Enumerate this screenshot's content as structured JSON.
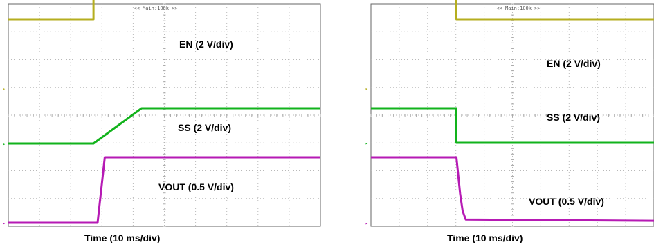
{
  "chart_data": [
    {
      "type": "line",
      "title": "",
      "header": "<< Main:100k >>",
      "xlabel": "Time (10 ms/div)",
      "xlim": [
        0,
        100
      ],
      "grid": true,
      "divisions": {
        "x": 10,
        "y": 8
      },
      "series": [
        {
          "name": "EN (2 V/div)",
          "color": "#b5ae1f",
          "x": [
            0,
            27.3,
            27.3,
            100
          ],
          "y": [
            1.0,
            1.0,
            2.0,
            2.0
          ]
        },
        {
          "name": "SS (2 V/div)",
          "color": "#12b31c",
          "x": [
            0,
            27.3,
            42.7,
            100
          ],
          "y": [
            0,
            0,
            1.0,
            1.0
          ]
        },
        {
          "name": "VOUT (0.5 V/div)",
          "color": "#b61ab4",
          "x": [
            0,
            28.6,
            30.9,
            100
          ],
          "y": [
            0,
            0,
            1.0,
            1.0
          ]
        }
      ]
    },
    {
      "type": "line",
      "title": "",
      "header": "<< Main:100k >>",
      "xlabel": "Time (10 ms/div)",
      "xlim": [
        0,
        100
      ],
      "grid": true,
      "divisions": {
        "x": 10,
        "y": 8
      },
      "series": [
        {
          "name": "EN (2 V/div)",
          "color": "#b5ae1f",
          "x": [
            0,
            30.2,
            30.2,
            100
          ],
          "y": [
            2.0,
            2.0,
            1.0,
            1.0
          ]
        },
        {
          "name": "SS (2 V/div)",
          "color": "#12b31c",
          "x": [
            0,
            30.2,
            30.2,
            100
          ],
          "y": [
            1.0,
            1.0,
            0,
            0
          ]
        },
        {
          "name": "VOUT (0.5 V/div)",
          "color": "#b61ab4",
          "x": [
            0,
            30.2,
            31.5,
            32.4,
            33.5,
            100
          ],
          "y": [
            1.0,
            1.0,
            0.45,
            0.18,
            0.05,
            0.03
          ]
        }
      ]
    }
  ]
}
